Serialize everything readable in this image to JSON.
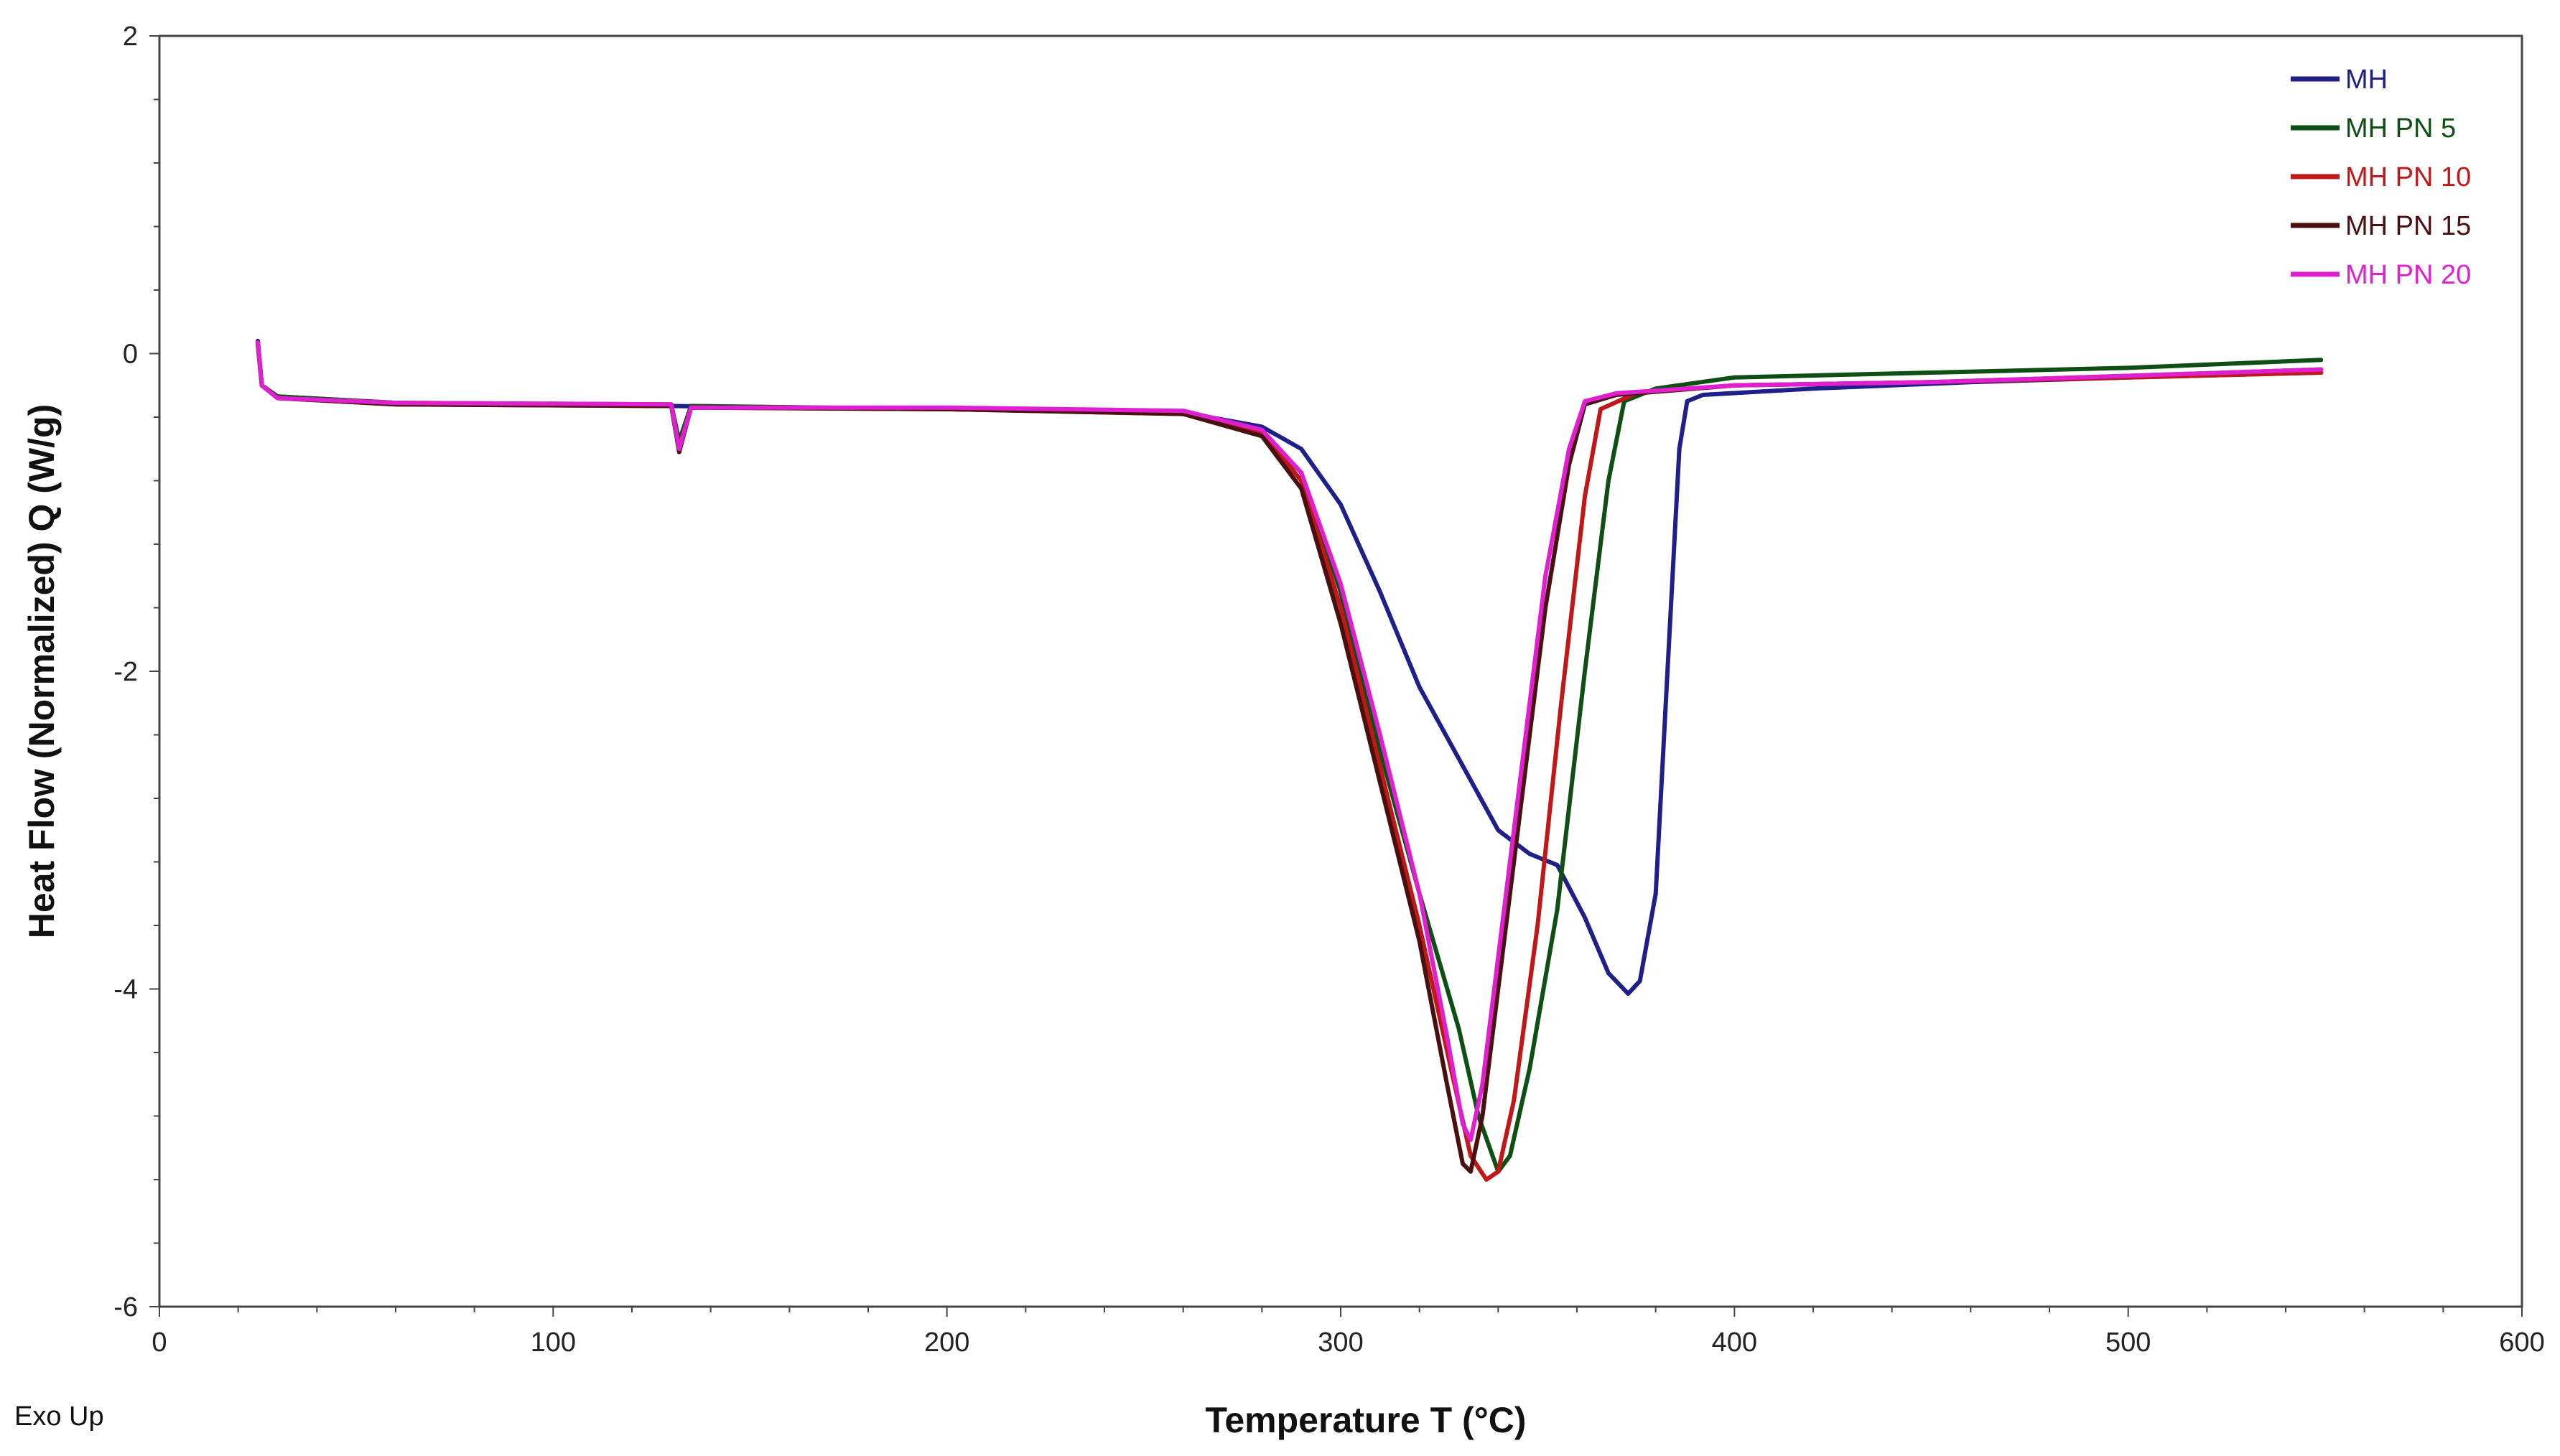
{
  "chart_data": {
    "type": "line",
    "title": "",
    "xlabel": "Temperature  T (°C)",
    "ylabel": "Heat Flow (Normalized)  Q (W/g)",
    "xlim": [
      0,
      600
    ],
    "ylim": [
      -6,
      2
    ],
    "xticks": [
      "0",
      "100",
      "200",
      "300",
      "400",
      "500",
      "600"
    ],
    "yticks": [
      "2",
      "0",
      "-2",
      "-4",
      "-6"
    ],
    "grid": false,
    "legend_position": "top-right",
    "annotation": "Exo Up",
    "series": [
      {
        "name": "MH",
        "color": "#1f1f8a",
        "points": [
          [
            25,
            0.08
          ],
          [
            26,
            -0.2
          ],
          [
            30,
            -0.27
          ],
          [
            60,
            -0.31
          ],
          [
            130,
            -0.33
          ],
          [
            200,
            -0.35
          ],
          [
            260,
            -0.37
          ],
          [
            280,
            -0.46
          ],
          [
            290,
            -0.6
          ],
          [
            300,
            -0.95
          ],
          [
            310,
            -1.5
          ],
          [
            320,
            -2.1
          ],
          [
            330,
            -2.55
          ],
          [
            340,
            -3.0
          ],
          [
            348,
            -3.15
          ],
          [
            355,
            -3.22
          ],
          [
            362,
            -3.55
          ],
          [
            368,
            -3.9
          ],
          [
            373,
            -4.03
          ],
          [
            376,
            -3.95
          ],
          [
            380,
            -3.4
          ],
          [
            383,
            -2.0
          ],
          [
            386,
            -0.6
          ],
          [
            388,
            -0.3
          ],
          [
            392,
            -0.26
          ],
          [
            420,
            -0.22
          ],
          [
            460,
            -0.18
          ],
          [
            500,
            -0.15
          ],
          [
            549,
            -0.12
          ]
        ]
      },
      {
        "name": "MH PN 5",
        "color": "#0f4f14",
        "points": [
          [
            25,
            0.05
          ],
          [
            26,
            -0.2
          ],
          [
            30,
            -0.27
          ],
          [
            60,
            -0.31
          ],
          [
            130,
            -0.32
          ],
          [
            132,
            -0.55
          ],
          [
            135,
            -0.33
          ],
          [
            200,
            -0.35
          ],
          [
            260,
            -0.37
          ],
          [
            280,
            -0.5
          ],
          [
            290,
            -0.75
          ],
          [
            300,
            -1.5
          ],
          [
            310,
            -2.5
          ],
          [
            320,
            -3.4
          ],
          [
            330,
            -4.25
          ],
          [
            335,
            -4.8
          ],
          [
            340,
            -5.15
          ],
          [
            343,
            -5.05
          ],
          [
            348,
            -4.5
          ],
          [
            355,
            -3.5
          ],
          [
            362,
            -2.0
          ],
          [
            368,
            -0.8
          ],
          [
            372,
            -0.3
          ],
          [
            380,
            -0.22
          ],
          [
            400,
            -0.15
          ],
          [
            450,
            -0.12
          ],
          [
            500,
            -0.09
          ],
          [
            549,
            -0.04
          ]
        ]
      },
      {
        "name": "MH PN 10",
        "color": "#c01818",
        "points": [
          [
            25,
            0.06
          ],
          [
            26,
            -0.2
          ],
          [
            30,
            -0.28
          ],
          [
            60,
            -0.32
          ],
          [
            130,
            -0.33
          ],
          [
            132,
            -0.6
          ],
          [
            135,
            -0.34
          ],
          [
            200,
            -0.35
          ],
          [
            260,
            -0.38
          ],
          [
            280,
            -0.5
          ],
          [
            290,
            -0.8
          ],
          [
            300,
            -1.6
          ],
          [
            310,
            -2.6
          ],
          [
            320,
            -3.6
          ],
          [
            328,
            -4.5
          ],
          [
            333,
            -5.05
          ],
          [
            337,
            -5.2
          ],
          [
            340,
            -5.15
          ],
          [
            344,
            -4.7
          ],
          [
            350,
            -3.6
          ],
          [
            356,
            -2.2
          ],
          [
            362,
            -0.9
          ],
          [
            366,
            -0.35
          ],
          [
            375,
            -0.25
          ],
          [
            400,
            -0.2
          ],
          [
            450,
            -0.18
          ],
          [
            500,
            -0.15
          ],
          [
            549,
            -0.12
          ]
        ]
      },
      {
        "name": "MH PN 15",
        "color": "#4a1010",
        "points": [
          [
            25,
            0.07
          ],
          [
            26,
            -0.2
          ],
          [
            30,
            -0.28
          ],
          [
            60,
            -0.32
          ],
          [
            130,
            -0.33
          ],
          [
            132,
            -0.62
          ],
          [
            135,
            -0.34
          ],
          [
            200,
            -0.35
          ],
          [
            260,
            -0.38
          ],
          [
            280,
            -0.52
          ],
          [
            290,
            -0.85
          ],
          [
            300,
            -1.7
          ],
          [
            310,
            -2.7
          ],
          [
            320,
            -3.7
          ],
          [
            327,
            -4.6
          ],
          [
            331,
            -5.1
          ],
          [
            333,
            -5.15
          ],
          [
            336,
            -4.8
          ],
          [
            340,
            -4.0
          ],
          [
            346,
            -2.8
          ],
          [
            352,
            -1.6
          ],
          [
            358,
            -0.7
          ],
          [
            362,
            -0.32
          ],
          [
            370,
            -0.26
          ],
          [
            400,
            -0.2
          ],
          [
            450,
            -0.18
          ],
          [
            500,
            -0.14
          ],
          [
            549,
            -0.1
          ]
        ]
      },
      {
        "name": "MH PN 20",
        "color": "#e020d0",
        "points": [
          [
            25,
            0.07
          ],
          [
            26,
            -0.2
          ],
          [
            30,
            -0.28
          ],
          [
            60,
            -0.31
          ],
          [
            130,
            -0.32
          ],
          [
            132,
            -0.6
          ],
          [
            135,
            -0.34
          ],
          [
            200,
            -0.34
          ],
          [
            260,
            -0.36
          ],
          [
            280,
            -0.48
          ],
          [
            290,
            -0.75
          ],
          [
            300,
            -1.45
          ],
          [
            310,
            -2.4
          ],
          [
            320,
            -3.4
          ],
          [
            327,
            -4.3
          ],
          [
            331,
            -4.85
          ],
          [
            333,
            -4.95
          ],
          [
            336,
            -4.6
          ],
          [
            340,
            -3.8
          ],
          [
            346,
            -2.6
          ],
          [
            352,
            -1.4
          ],
          [
            358,
            -0.6
          ],
          [
            362,
            -0.3
          ],
          [
            370,
            -0.25
          ],
          [
            400,
            -0.2
          ],
          [
            450,
            -0.18
          ],
          [
            500,
            -0.14
          ],
          [
            549,
            -0.1
          ]
        ]
      }
    ]
  }
}
